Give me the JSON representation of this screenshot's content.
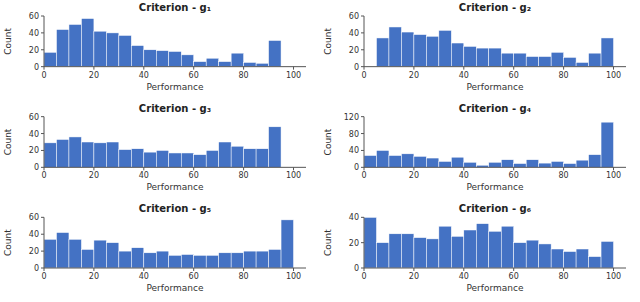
{
  "chart_data": [
    {
      "type": "histogram",
      "title": "Criterion - g₁",
      "x_label": "Performance",
      "y_label": "Count",
      "color": "#4472C4",
      "bins": [
        0,
        5,
        10,
        15,
        20,
        25,
        30,
        35,
        40,
        45,
        50,
        55,
        60,
        65,
        70,
        75,
        80,
        85,
        90,
        95,
        100
      ],
      "values": [
        17,
        44,
        50,
        57,
        42,
        40,
        37,
        25,
        20,
        19,
        18,
        14,
        6,
        10,
        6,
        16,
        5,
        4,
        31,
        0
      ],
      "xlim": [
        0,
        105
      ],
      "xticks": [
        0,
        20,
        40,
        60,
        80,
        100
      ],
      "ylim": [
        0,
        60
      ],
      "yticks": [
        0,
        20,
        40,
        60
      ],
      "grid": false
    },
    {
      "type": "histogram",
      "title": "Criterion - g₂",
      "x_label": "Performance",
      "y_label": "Count",
      "color": "#4472C4",
      "bins": [
        0,
        5,
        10,
        15,
        20,
        25,
        30,
        35,
        40,
        45,
        50,
        55,
        60,
        65,
        70,
        75,
        80,
        85,
        90,
        95,
        100
      ],
      "values": [
        0,
        34,
        47,
        41,
        38,
        36,
        43,
        28,
        24,
        22,
        22,
        16,
        16,
        12,
        12,
        17,
        11,
        5,
        16,
        34
      ],
      "xlim": [
        0,
        105
      ],
      "xticks": [
        0,
        20,
        40,
        60,
        80,
        100
      ],
      "ylim": [
        0,
        60
      ],
      "yticks": [
        0,
        20,
        40,
        60
      ],
      "grid": false
    },
    {
      "type": "histogram",
      "title": "Criterion - g₃",
      "x_label": "Performance",
      "y_label": "Count",
      "color": "#4472C4",
      "bins": [
        0,
        5,
        10,
        15,
        20,
        25,
        30,
        35,
        40,
        45,
        50,
        55,
        60,
        65,
        70,
        75,
        80,
        85,
        90,
        95,
        100
      ],
      "values": [
        29,
        33,
        36,
        30,
        29,
        30,
        21,
        22,
        18,
        20,
        17,
        17,
        15,
        20,
        30,
        25,
        22,
        22,
        48,
        0
      ],
      "xlim": [
        0,
        105
      ],
      "xticks": [
        0,
        20,
        40,
        60,
        80,
        100
      ],
      "ylim": [
        0,
        60
      ],
      "yticks": [
        0,
        20,
        40,
        60
      ],
      "grid": false
    },
    {
      "type": "histogram",
      "title": "Criterion - g₄",
      "x_label": "Performance",
      "y_label": "Count",
      "color": "#4472C4",
      "bins": [
        0,
        5,
        10,
        15,
        20,
        25,
        30,
        35,
        40,
        45,
        50,
        55,
        60,
        65,
        70,
        75,
        80,
        85,
        90,
        95,
        100
      ],
      "values": [
        28,
        40,
        28,
        32,
        26,
        22,
        14,
        24,
        12,
        5,
        12,
        18,
        9,
        18,
        10,
        14,
        9,
        17,
        30,
        107
      ],
      "xlim": [
        0,
        105
      ],
      "xticks": [
        0,
        20,
        40,
        60,
        80,
        100
      ],
      "ylim": [
        0,
        120
      ],
      "yticks": [
        0,
        40,
        80,
        120
      ],
      "grid": false
    },
    {
      "type": "histogram",
      "title": "Criterion - g₅",
      "x_label": "Performance",
      "y_label": "Count",
      "color": "#4472C4",
      "bins": [
        0,
        5,
        10,
        15,
        20,
        25,
        30,
        35,
        40,
        45,
        50,
        55,
        60,
        65,
        70,
        75,
        80,
        85,
        90,
        95,
        100
      ],
      "values": [
        34,
        42,
        34,
        22,
        33,
        30,
        20,
        24,
        18,
        20,
        15,
        16,
        15,
        15,
        18,
        18,
        20,
        20,
        22,
        57
      ],
      "xlim": [
        0,
        105
      ],
      "xticks": [
        0,
        20,
        40,
        60,
        80,
        100
      ],
      "ylim": [
        0,
        60
      ],
      "yticks": [
        0,
        20,
        40,
        60
      ],
      "grid": false
    },
    {
      "type": "histogram",
      "title": "Criterion - g₆",
      "x_label": "Performance",
      "y_label": "Count",
      "color": "#4472C4",
      "bins": [
        0,
        5,
        10,
        15,
        20,
        25,
        30,
        35,
        40,
        45,
        50,
        55,
        60,
        65,
        70,
        75,
        80,
        85,
        90,
        95,
        100
      ],
      "values": [
        40,
        20,
        27,
        27,
        24,
        23,
        33,
        25,
        30,
        35,
        29,
        33,
        20,
        22,
        19,
        15,
        13,
        15,
        9,
        21
      ],
      "xlim": [
        0,
        105
      ],
      "xticks": [
        0,
        20,
        40,
        60,
        80,
        100
      ],
      "ylim": [
        0,
        40
      ],
      "yticks": [
        0,
        20,
        40
      ],
      "grid": false
    }
  ]
}
